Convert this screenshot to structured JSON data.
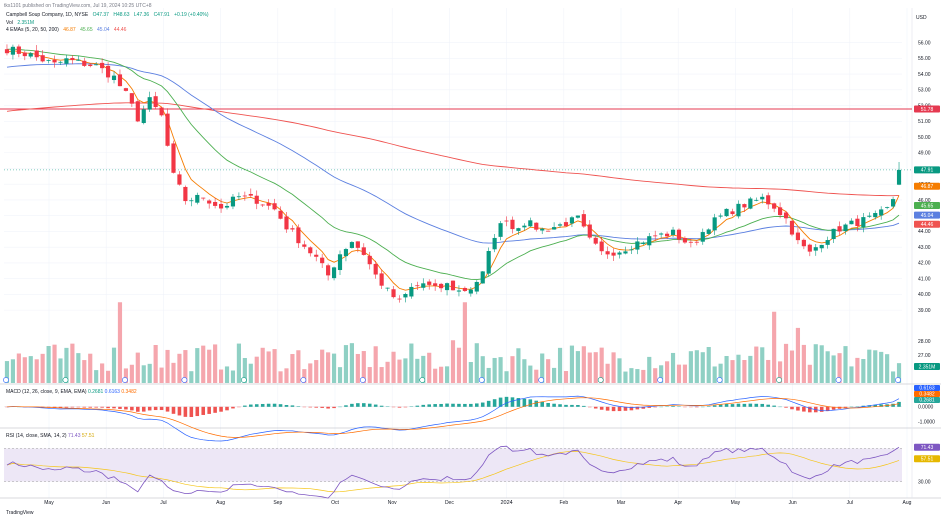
{
  "published": "tks1101 published on TradingView.com, Jul 19, 2024 10:25 UTC+8",
  "symbol_line": {
    "name": "Campbell Soup Company, 1D, NYSE",
    "open": "O47.37",
    "high": "H48.63",
    "low": "L47.36",
    "close": "C47.91",
    "change": "+0.19 (+0.40%)"
  },
  "vol_line": {
    "label": "Vol",
    "value": "2.351M"
  },
  "ema_line": {
    "label": "4 EMAs (5, 20, 50, 200)",
    "v5": "46.87",
    "v20": "45.65",
    "v50": "45.04",
    "v200": "44.46"
  },
  "macd_line": {
    "label": "MACD (12, 26, close, 9, EMA, EMA)",
    "hist": "0.2681",
    "macd": "0.6163",
    "signal": "0.3482"
  },
  "rsi_line": {
    "label": "RSI (14, close, SMA, 14, 2)",
    "rsi": "71.43",
    "ma": "57.51"
  },
  "currency": "USD",
  "tv_logo": "TradingView",
  "colors": {
    "up": "#089981",
    "down": "#f23645",
    "ema5": "#f57c00",
    "ema20": "#4caf50",
    "ema50": "#5b7fe0",
    "ema200": "#ef5350",
    "resistance": "#e53950",
    "macd": "#2962ff",
    "signal": "#ff6d00",
    "rsi": "#7e57c2",
    "rsi_ma": "#f5c518",
    "rsi_band": "#ede7f6"
  },
  "chart_data": [
    {
      "type": "candlestick",
      "title": "Campbell Soup Company, 1D, NYSE",
      "x_ticks": [
        "May",
        "Jun",
        "Jul",
        "Aug",
        "Sep",
        "Oct",
        "Nov",
        "Dec",
        "2024",
        "Feb",
        "Mar",
        "Apr",
        "May",
        "Jun",
        "Jul",
        "Aug"
      ],
      "y_ticks": [
        "56.00",
        "55.00",
        "54.00",
        "53.00",
        "52.00",
        "51.00",
        "50.00",
        "49.00",
        "48.00",
        "47.00",
        "46.00",
        "45.00",
        "44.00",
        "43.00",
        "42.00",
        "41.00",
        "40.00",
        "39.00"
      ],
      "ylim": [
        38.5,
        56.8
      ],
      "grid": true,
      "price_waypoints": [
        [
          0,
          55.6
        ],
        [
          4,
          55.2
        ],
        [
          8,
          54.6
        ],
        [
          10,
          54.9
        ],
        [
          15,
          54.5
        ],
        [
          18,
          53.8
        ],
        [
          20,
          52.7
        ],
        [
          22,
          51.2
        ],
        [
          24,
          52.3
        ],
        [
          26,
          51.3
        ],
        [
          28,
          47.5
        ],
        [
          30,
          46.0
        ],
        [
          33,
          46.2
        ],
        [
          36,
          45.5
        ],
        [
          39,
          46.2
        ],
        [
          42,
          46.0
        ],
        [
          45,
          45.4
        ],
        [
          47,
          44.3
        ],
        [
          50,
          43.1
        ],
        [
          52,
          42.3
        ],
        [
          54,
          41.2
        ],
        [
          56,
          42.6
        ],
        [
          58,
          43.4
        ],
        [
          60,
          42.6
        ],
        [
          62,
          41.2
        ],
        [
          64,
          40.2
        ],
        [
          66,
          39.5
        ],
        [
          68,
          40.4
        ],
        [
          70,
          40.7
        ],
        [
          72,
          40.3
        ],
        [
          74,
          40.6
        ],
        [
          76,
          40.2
        ],
        [
          78,
          40.4
        ],
        [
          80,
          41.3
        ],
        [
          82,
          43.8
        ],
        [
          84,
          44.9
        ],
        [
          85,
          44.2
        ],
        [
          87,
          44.6
        ],
        [
          90,
          44.1
        ],
        [
          93,
          44.4
        ],
        [
          96,
          44.8
        ],
        [
          98,
          43.4
        ],
        [
          100,
          42.6
        ],
        [
          103,
          42.8
        ],
        [
          106,
          43.3
        ],
        [
          109,
          43.7
        ],
        [
          112,
          43.9
        ],
        [
          115,
          43.1
        ],
        [
          118,
          44.4
        ],
        [
          121,
          45.2
        ],
        [
          124,
          45.7
        ],
        [
          127,
          46.1
        ],
        [
          129,
          45.6
        ],
        [
          131,
          44.8
        ],
        [
          133,
          43.3
        ],
        [
          135,
          42.6
        ],
        [
          137,
          43.4
        ],
        [
          140,
          44.2
        ],
        [
          143,
          44.6
        ],
        [
          146,
          44.9
        ],
        [
          148,
          45.4
        ],
        [
          149,
          46.1
        ],
        [
          150,
          47.9
        ]
      ],
      "ema_last": {
        "ema5": 46.87,
        "ema20": 45.65,
        "ema50": 45.04,
        "ema200": 44.46
      },
      "resistance_line": 51.78,
      "price_labels": {
        "last": "47.91",
        "ema5": "46.87",
        "ema20": "45.65",
        "ema50": "45.04",
        "ema200": "44.46",
        "resistance": "51.78"
      },
      "volume": {
        "last": "2.351M",
        "ticks": [
          "27.00",
          "28.00"
        ],
        "spikes": [
          [
            19,
            0.85
          ],
          [
            25,
            0.4
          ],
          [
            75,
            0.45
          ],
          [
            77,
            0.85
          ],
          [
            129,
            0.75
          ],
          [
            133,
            0.58
          ]
        ]
      },
      "event_markers": 16
    },
    {
      "type": "bar",
      "title": "MACD (12, 26, close, 9, EMA, EMA)",
      "y_ticks": [
        "0.0000",
        "-1.0000"
      ],
      "ylim": [
        -1.3,
        1.0
      ],
      "last": {
        "hist": 0.2681,
        "macd": 0.6163,
        "signal": 0.3482
      }
    },
    {
      "type": "line",
      "title": "RSI (14, close, SMA, 14, 2)",
      "y_ticks": [
        "70.00",
        "30.00"
      ],
      "ylim": [
        15,
        85
      ],
      "band": [
        30,
        70
      ],
      "last": {
        "rsi": 71.43,
        "ma": 57.51
      }
    }
  ]
}
